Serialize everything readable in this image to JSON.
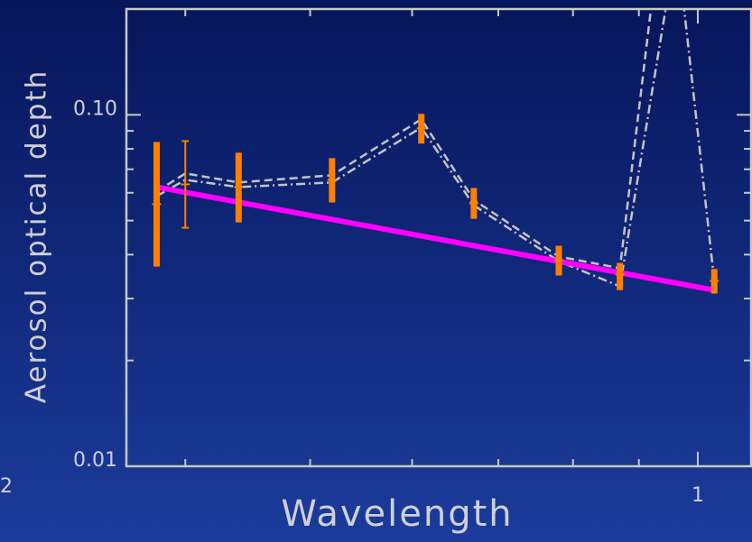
{
  "chart_data": {
    "type": "line",
    "y_label": "Aerosol optical depth",
    "x_label": "Wavelength",
    "edge_label": "2",
    "xscale": "log",
    "yscale": "log",
    "xlim": [
      0.36,
      1.1
    ],
    "ylim": [
      0.01,
      0.2
    ],
    "xticks": [
      1
    ],
    "xminor_ticks": [
      0.4,
      0.5,
      0.6,
      0.7,
      0.8,
      0.9
    ],
    "yticks": [
      {
        "value": 0.01,
        "label": "0.01"
      },
      {
        "value": 0.1,
        "label": "0.10"
      }
    ],
    "yminor_ticks": [
      0.02,
      0.03,
      0.04,
      0.05,
      0.06,
      0.07,
      0.08,
      0.09
    ],
    "frame_color": "#c8c8c8",
    "series": [
      {
        "style": "dashed",
        "color": "#c4c4c4",
        "x": [
          0.38,
          0.4,
          0.44,
          0.52,
          0.61,
          0.67,
          0.78,
          0.87,
          0.963,
          1.03
        ],
        "values": [
          0.0605,
          0.0681,
          0.0642,
          0.0673,
          0.0971,
          0.0573,
          0.0395,
          0.0366,
          0.82,
          null
        ]
      },
      {
        "style": "dashdot",
        "color": "#c4c4c4",
        "x": [
          0.38,
          0.4,
          0.44,
          0.52,
          0.61,
          0.67,
          0.78,
          0.87,
          0.963,
          1.03
        ],
        "values": [
          0.0587,
          0.0653,
          0.0623,
          0.0642,
          0.092,
          0.0553,
          0.0383,
          0.0325,
          0.31,
          0.0335
        ]
      },
      {
        "style": "solid",
        "color": "#ff00ff",
        "x": [
          0.38,
          1.03
        ],
        "values": [
          0.0623,
          0.0317
        ]
      },
      {
        "style": "errorbar",
        "color": "#ff8000",
        "line_width": 7,
        "x": [
          0.38,
          0.44,
          0.52,
          0.61,
          0.67,
          0.78,
          0.87,
          1.03
        ],
        "values": [
          0.0557,
          0.0623,
          0.0653,
          0.0915,
          0.056,
          0.0386,
          0.0351,
          0.0337
        ],
        "lower": [
          0.037,
          0.0494,
          0.0563,
          0.0828,
          0.0506,
          0.0349,
          0.0317,
          0.031
        ],
        "upper": [
          0.0837,
          0.078,
          0.0753,
          0.1006,
          0.0619,
          0.0424,
          0.0379,
          0.0364
        ]
      },
      {
        "style": "errorbar",
        "color": "#ff8000",
        "line_width": 2,
        "x": [
          0.4
        ],
        "values": [
          0.0634
        ],
        "lower": [
          0.0477
        ],
        "upper": [
          0.0842
        ]
      }
    ]
  }
}
